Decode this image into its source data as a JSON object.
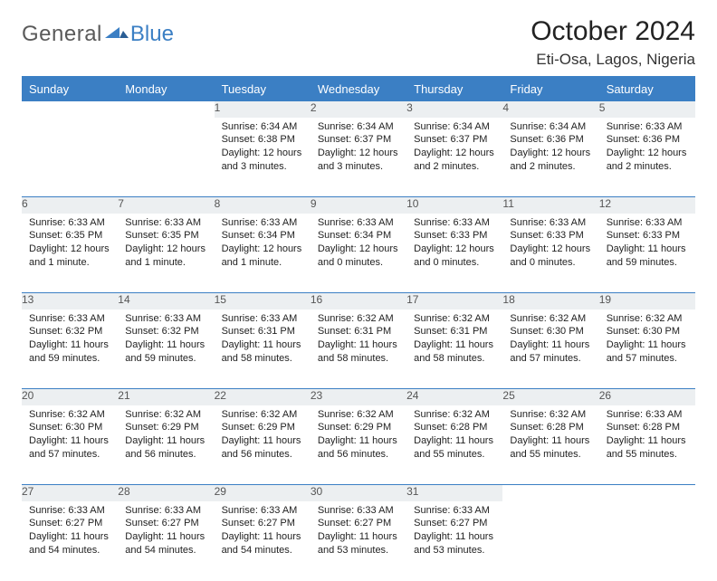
{
  "logo": {
    "general": "General",
    "blue": "Blue"
  },
  "title": "October 2024",
  "location": "Eti-Osa, Lagos, Nigeria",
  "colors": {
    "accent": "#3b7fc4",
    "daynum_bg": "#eceff1",
    "text": "#222222",
    "logo_gray": "#5a5a5a"
  },
  "day_headers": [
    "Sunday",
    "Monday",
    "Tuesday",
    "Wednesday",
    "Thursday",
    "Friday",
    "Saturday"
  ],
  "weeks": [
    {
      "nums": [
        "",
        "",
        "1",
        "2",
        "3",
        "4",
        "5"
      ],
      "cells": [
        null,
        null,
        {
          "sunrise": "Sunrise: 6:34 AM",
          "sunset": "Sunset: 6:38 PM",
          "dl1": "Daylight: 12 hours",
          "dl2": "and 3 minutes."
        },
        {
          "sunrise": "Sunrise: 6:34 AM",
          "sunset": "Sunset: 6:37 PM",
          "dl1": "Daylight: 12 hours",
          "dl2": "and 3 minutes."
        },
        {
          "sunrise": "Sunrise: 6:34 AM",
          "sunset": "Sunset: 6:37 PM",
          "dl1": "Daylight: 12 hours",
          "dl2": "and 2 minutes."
        },
        {
          "sunrise": "Sunrise: 6:34 AM",
          "sunset": "Sunset: 6:36 PM",
          "dl1": "Daylight: 12 hours",
          "dl2": "and 2 minutes."
        },
        {
          "sunrise": "Sunrise: 6:33 AM",
          "sunset": "Sunset: 6:36 PM",
          "dl1": "Daylight: 12 hours",
          "dl2": "and 2 minutes."
        }
      ]
    },
    {
      "nums": [
        "6",
        "7",
        "8",
        "9",
        "10",
        "11",
        "12"
      ],
      "cells": [
        {
          "sunrise": "Sunrise: 6:33 AM",
          "sunset": "Sunset: 6:35 PM",
          "dl1": "Daylight: 12 hours",
          "dl2": "and 1 minute."
        },
        {
          "sunrise": "Sunrise: 6:33 AM",
          "sunset": "Sunset: 6:35 PM",
          "dl1": "Daylight: 12 hours",
          "dl2": "and 1 minute."
        },
        {
          "sunrise": "Sunrise: 6:33 AM",
          "sunset": "Sunset: 6:34 PM",
          "dl1": "Daylight: 12 hours",
          "dl2": "and 1 minute."
        },
        {
          "sunrise": "Sunrise: 6:33 AM",
          "sunset": "Sunset: 6:34 PM",
          "dl1": "Daylight: 12 hours",
          "dl2": "and 0 minutes."
        },
        {
          "sunrise": "Sunrise: 6:33 AM",
          "sunset": "Sunset: 6:33 PM",
          "dl1": "Daylight: 12 hours",
          "dl2": "and 0 minutes."
        },
        {
          "sunrise": "Sunrise: 6:33 AM",
          "sunset": "Sunset: 6:33 PM",
          "dl1": "Daylight: 12 hours",
          "dl2": "and 0 minutes."
        },
        {
          "sunrise": "Sunrise: 6:33 AM",
          "sunset": "Sunset: 6:33 PM",
          "dl1": "Daylight: 11 hours",
          "dl2": "and 59 minutes."
        }
      ]
    },
    {
      "nums": [
        "13",
        "14",
        "15",
        "16",
        "17",
        "18",
        "19"
      ],
      "cells": [
        {
          "sunrise": "Sunrise: 6:33 AM",
          "sunset": "Sunset: 6:32 PM",
          "dl1": "Daylight: 11 hours",
          "dl2": "and 59 minutes."
        },
        {
          "sunrise": "Sunrise: 6:33 AM",
          "sunset": "Sunset: 6:32 PM",
          "dl1": "Daylight: 11 hours",
          "dl2": "and 59 minutes."
        },
        {
          "sunrise": "Sunrise: 6:33 AM",
          "sunset": "Sunset: 6:31 PM",
          "dl1": "Daylight: 11 hours",
          "dl2": "and 58 minutes."
        },
        {
          "sunrise": "Sunrise: 6:32 AM",
          "sunset": "Sunset: 6:31 PM",
          "dl1": "Daylight: 11 hours",
          "dl2": "and 58 minutes."
        },
        {
          "sunrise": "Sunrise: 6:32 AM",
          "sunset": "Sunset: 6:31 PM",
          "dl1": "Daylight: 11 hours",
          "dl2": "and 58 minutes."
        },
        {
          "sunrise": "Sunrise: 6:32 AM",
          "sunset": "Sunset: 6:30 PM",
          "dl1": "Daylight: 11 hours",
          "dl2": "and 57 minutes."
        },
        {
          "sunrise": "Sunrise: 6:32 AM",
          "sunset": "Sunset: 6:30 PM",
          "dl1": "Daylight: 11 hours",
          "dl2": "and 57 minutes."
        }
      ]
    },
    {
      "nums": [
        "20",
        "21",
        "22",
        "23",
        "24",
        "25",
        "26"
      ],
      "cells": [
        {
          "sunrise": "Sunrise: 6:32 AM",
          "sunset": "Sunset: 6:30 PM",
          "dl1": "Daylight: 11 hours",
          "dl2": "and 57 minutes."
        },
        {
          "sunrise": "Sunrise: 6:32 AM",
          "sunset": "Sunset: 6:29 PM",
          "dl1": "Daylight: 11 hours",
          "dl2": "and 56 minutes."
        },
        {
          "sunrise": "Sunrise: 6:32 AM",
          "sunset": "Sunset: 6:29 PM",
          "dl1": "Daylight: 11 hours",
          "dl2": "and 56 minutes."
        },
        {
          "sunrise": "Sunrise: 6:32 AM",
          "sunset": "Sunset: 6:29 PM",
          "dl1": "Daylight: 11 hours",
          "dl2": "and 56 minutes."
        },
        {
          "sunrise": "Sunrise: 6:32 AM",
          "sunset": "Sunset: 6:28 PM",
          "dl1": "Daylight: 11 hours",
          "dl2": "and 55 minutes."
        },
        {
          "sunrise": "Sunrise: 6:32 AM",
          "sunset": "Sunset: 6:28 PM",
          "dl1": "Daylight: 11 hours",
          "dl2": "and 55 minutes."
        },
        {
          "sunrise": "Sunrise: 6:33 AM",
          "sunset": "Sunset: 6:28 PM",
          "dl1": "Daylight: 11 hours",
          "dl2": "and 55 minutes."
        }
      ]
    },
    {
      "nums": [
        "27",
        "28",
        "29",
        "30",
        "31",
        "",
        ""
      ],
      "cells": [
        {
          "sunrise": "Sunrise: 6:33 AM",
          "sunset": "Sunset: 6:27 PM",
          "dl1": "Daylight: 11 hours",
          "dl2": "and 54 minutes."
        },
        {
          "sunrise": "Sunrise: 6:33 AM",
          "sunset": "Sunset: 6:27 PM",
          "dl1": "Daylight: 11 hours",
          "dl2": "and 54 minutes."
        },
        {
          "sunrise": "Sunrise: 6:33 AM",
          "sunset": "Sunset: 6:27 PM",
          "dl1": "Daylight: 11 hours",
          "dl2": "and 54 minutes."
        },
        {
          "sunrise": "Sunrise: 6:33 AM",
          "sunset": "Sunset: 6:27 PM",
          "dl1": "Daylight: 11 hours",
          "dl2": "and 53 minutes."
        },
        {
          "sunrise": "Sunrise: 6:33 AM",
          "sunset": "Sunset: 6:27 PM",
          "dl1": "Daylight: 11 hours",
          "dl2": "and 53 minutes."
        },
        null,
        null
      ]
    }
  ]
}
